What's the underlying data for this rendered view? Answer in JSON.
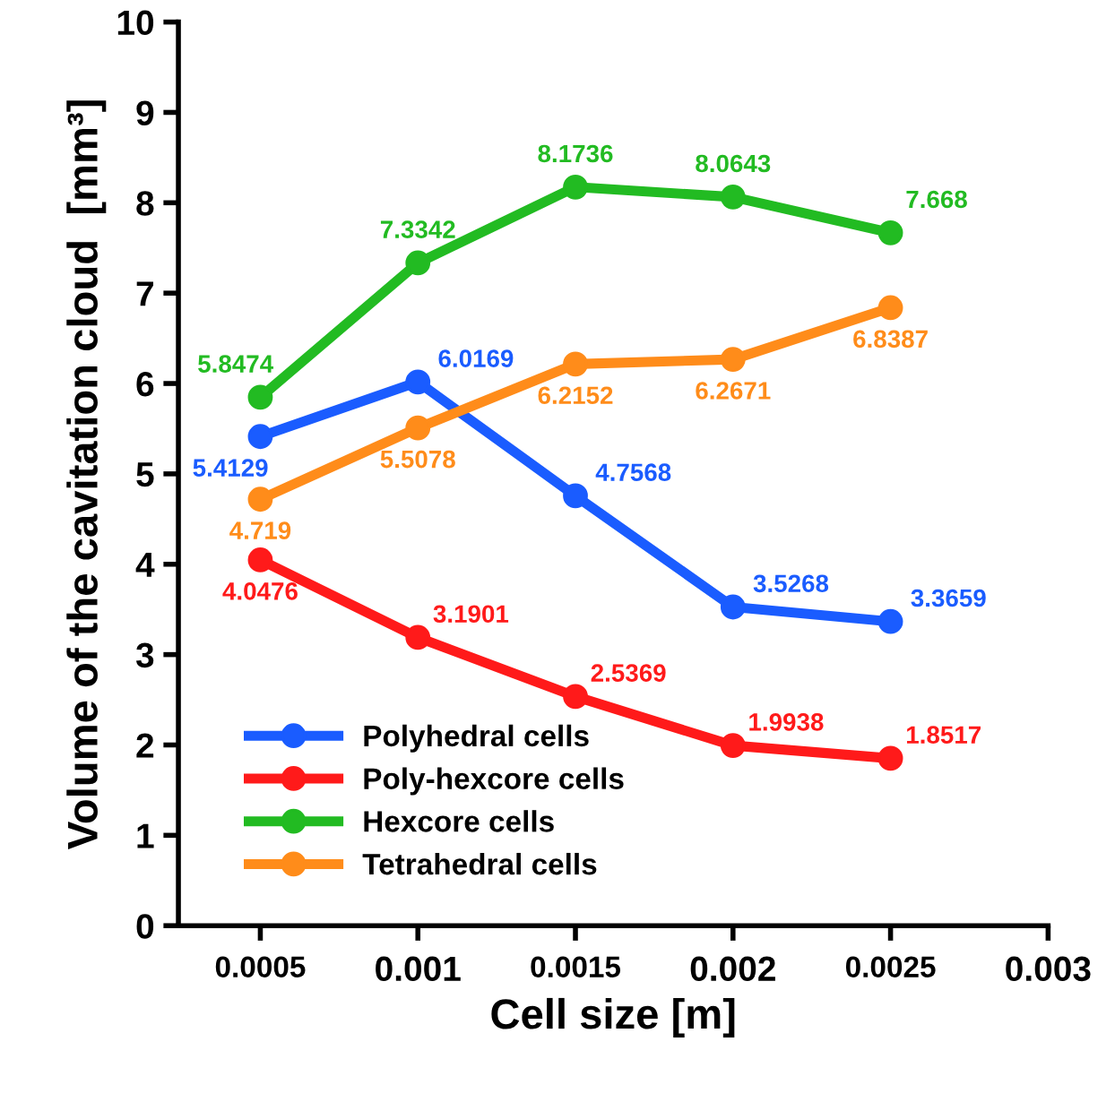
{
  "chart_data": {
    "type": "line",
    "xlabel": "Cell size [m]",
    "ylabel": "Volume of the cavitation cloud  [mm³]",
    "x": [
      0.0005,
      0.001,
      0.0015,
      0.002,
      0.0025
    ],
    "series": [
      {
        "name": "Polyhedral cells",
        "color": "#1a5cff",
        "values": [
          5.4129,
          6.0169,
          4.7568,
          3.5268,
          3.3659
        ]
      },
      {
        "name": "Poly-hexcore cells",
        "color": "#ff1a1a",
        "values": [
          4.0476,
          3.1901,
          2.5369,
          1.9938,
          1.8517
        ]
      },
      {
        "name": "Hexcore cells",
        "color": "#22bb22",
        "values": [
          5.8474,
          7.3342,
          8.1736,
          8.0643,
          7.668
        ]
      },
      {
        "name": "Tetrahedral cells",
        "color": "#ff8c1a",
        "values": [
          4.719,
          5.5078,
          6.2152,
          6.2671,
          6.8387
        ]
      }
    ],
    "xlim": [
      0.00024,
      0.003
    ],
    "xticks": [
      0.0005,
      0.001,
      0.0015,
      0.002,
      0.0025,
      0.003
    ],
    "ylim": [
      0,
      10
    ],
    "yticks": [
      0,
      1,
      2,
      3,
      4,
      5,
      6,
      7,
      8,
      9,
      10
    ],
    "marker": "circle",
    "line_style": "solid",
    "grid": false,
    "legend": "bottom left",
    "data_labels": true
  }
}
